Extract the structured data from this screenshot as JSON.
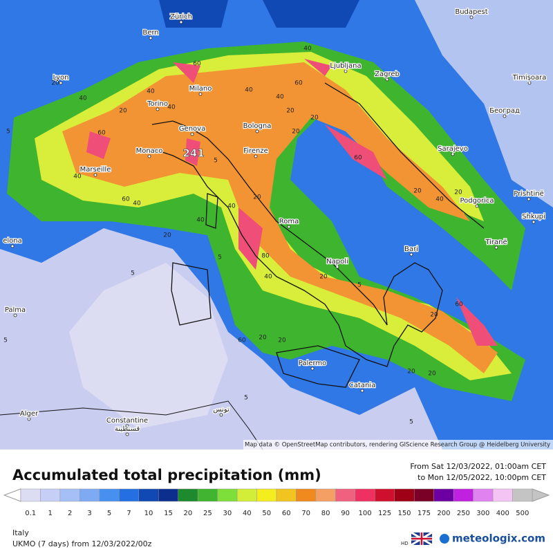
{
  "header": {
    "title": "Accumulated total precipitation (mm)",
    "range_from": "From Sat 12/03/2022, 01:00am CET",
    "range_to": "to Mon 12/05/2022, 10:00pm CET"
  },
  "map": {
    "attribution": "Map data © OpenStreetMap contributors, rendering GIScience Research Group @ Heidelberg University",
    "max_label": "241",
    "cities": [
      "Zürich",
      "Budapest",
      "Bern",
      "Lyon",
      "Milano",
      "Ljubljana",
      "Zagreb",
      "Timișoara",
      "Torino",
      "Београд",
      "Genova",
      "Bologna",
      "Monaco",
      "Firenze",
      "Sarajevo",
      "Marseille",
      "Prishtinë",
      "Podgorica",
      "Shkupi",
      "Roma",
      "Tiranë",
      "Bari",
      "Napoli",
      "elona",
      "Palma",
      "Palermo",
      "Catania",
      "Alger",
      "Constantine",
      "قسنطينة",
      "تونس"
    ],
    "contour_labels": [
      "20",
      "40",
      "60",
      "5",
      "20",
      "40",
      "40",
      "60",
      "40",
      "20",
      "60",
      "40",
      "40",
      "20",
      "40",
      "40",
      "60",
      "20",
      "40",
      "5",
      "20",
      "80",
      "40",
      "20",
      "5",
      "40",
      "60",
      "20",
      "20",
      "5",
      "20",
      "60",
      "20",
      "40",
      "20",
      "60",
      "20",
      "5",
      "20",
      "20",
      "5",
      "5",
      "5"
    ]
  },
  "legend": {
    "ticks": [
      "0.1",
      "1",
      "2",
      "3",
      "5",
      "7",
      "10",
      "15",
      "20",
      "25",
      "30",
      "40",
      "50",
      "60",
      "70",
      "80",
      "90",
      "100",
      "125",
      "150",
      "175",
      "200",
      "250",
      "300",
      "400",
      "500"
    ],
    "colors": [
      "#dcdcf2",
      "#c6cff6",
      "#a4c0f6",
      "#7eaaf4",
      "#4890f0",
      "#2470e2",
      "#1048b4",
      "#0c2e8c",
      "#1d8a2e",
      "#41b52f",
      "#7ede3a",
      "#d2ee38",
      "#f5ee1e",
      "#f2c41f",
      "#f08a1f",
      "#f59f64",
      "#f0617f",
      "#ee3161",
      "#cf0f2e",
      "#a00016",
      "#7a0028",
      "#6c00a2",
      "#c020e0",
      "#e082f0",
      "#f4c4f4",
      "#c4c4c4"
    ]
  },
  "footer": {
    "region": "Italy",
    "model": "UKMO (7 days) from 12/03/2022/00z",
    "hd": "HD",
    "brand": "meteologix.com"
  }
}
